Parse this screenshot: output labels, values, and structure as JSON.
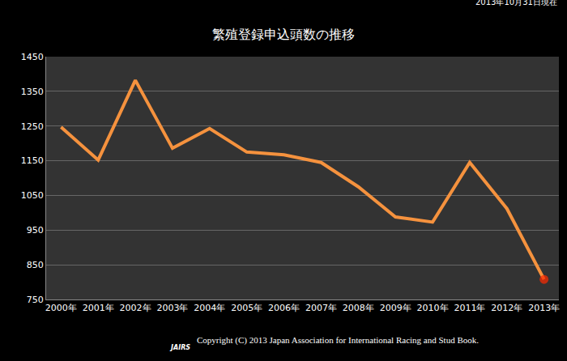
{
  "chart_data": {
    "type": "line",
    "title": "繁殖登録申込頭数の推移",
    "note": "2013年10月31日現在",
    "logo": "JAIRS",
    "copyright": "Copyright (C) 2013 Japan Association for International Racing and Stud Book.",
    "categories": [
      "2000年",
      "2001年",
      "2002年",
      "2003年",
      "2004年",
      "2005年",
      "2006年",
      "2007年",
      "2008年",
      "2009年",
      "2010年",
      "2011年",
      "2012年",
      "2013年"
    ],
    "values": [
      1247,
      1152,
      1382,
      1186,
      1243,
      1175,
      1167,
      1145,
      1075,
      988,
      973,
      1145,
      1012,
      808
    ],
    "color": "#f5923e",
    "colors": [
      "#f5923e",
      "#f5923e",
      "#f5923e",
      "#f5923e",
      "#f5923e",
      "#f5923e",
      "#f5923e",
      "#f5923e",
      "#f5923e",
      "#f5923e",
      "#f5923e",
      "#f5923e",
      "#f5923e",
      "#ff2a00"
    ],
    "ylim": [
      750,
      1450
    ],
    "yticks": [
      750,
      850,
      950,
      1050,
      1150,
      1250,
      1350,
      1450
    ],
    "grid": true
  }
}
